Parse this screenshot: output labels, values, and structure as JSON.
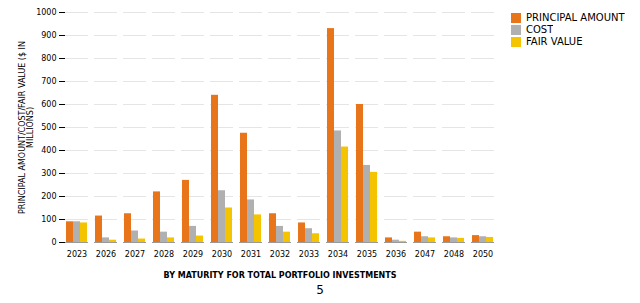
{
  "chart_data": {
    "type": "bar",
    "categories": [
      "2023",
      "2026",
      "2027",
      "2028",
      "2029",
      "2030",
      "2031",
      "2032",
      "2033",
      "2034",
      "2035",
      "2036",
      "2047",
      "2048",
      "2050"
    ],
    "series": [
      {
        "name": "PRINCIPAL AMOUNT",
        "color": "#E8751A",
        "values": [
          90,
          115,
          125,
          220,
          270,
          640,
          475,
          125,
          85,
          930,
          600,
          20,
          45,
          25,
          30
        ]
      },
      {
        "name": "COST",
        "color": "#B0B0B0",
        "values": [
          90,
          20,
          50,
          45,
          70,
          225,
          185,
          70,
          60,
          485,
          335,
          10,
          25,
          20,
          25
        ]
      },
      {
        "name": "FAIR VALUE",
        "color": "#F5C400",
        "values": [
          85,
          10,
          15,
          20,
          28,
          150,
          120,
          45,
          38,
          415,
          305,
          5,
          20,
          18,
          22
        ]
      }
    ],
    "ylabel": "PRINCIPAL AMOUNT/COST/FAIR VALUE ($ IN\nMILLIONS)",
    "xlabel": "BY MATURITY FOR TOTAL PORTFOLIO INVESTMENTS",
    "ylim": [
      0,
      1000
    ],
    "yticks": [
      0,
      100,
      200,
      300,
      400,
      500,
      600,
      700,
      800,
      900,
      1000
    ],
    "grid": true,
    "legend": "upper right",
    "annotations": [
      "5"
    ]
  }
}
